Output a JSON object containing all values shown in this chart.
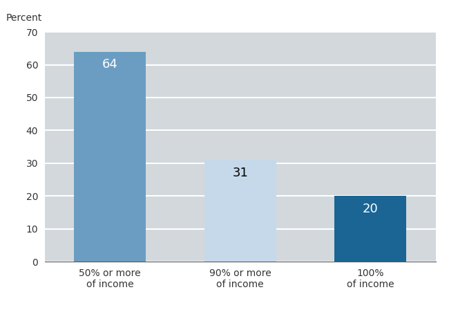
{
  "categories": [
    "50% or more\nof income",
    "90% or more\nof income",
    "100%\nof income"
  ],
  "values": [
    64,
    31,
    20
  ],
  "bar_colors": [
    "#6b9dc2",
    "#c5d9ea",
    "#1a6594"
  ],
  "label_colors": [
    "white",
    "black",
    "white"
  ],
  "ylabel": "Percent",
  "ylim": [
    0,
    70
  ],
  "yticks": [
    0,
    10,
    20,
    30,
    40,
    50,
    60,
    70
  ],
  "figure_bg_color": "#ffffff",
  "plot_bg_color": "#d3d8dc",
  "bar_width": 0.55,
  "label_fontsize": 13,
  "ylabel_fontsize": 10,
  "tick_fontsize": 10,
  "grid_color": "#ffffff",
  "grid_linewidth": 1.5
}
